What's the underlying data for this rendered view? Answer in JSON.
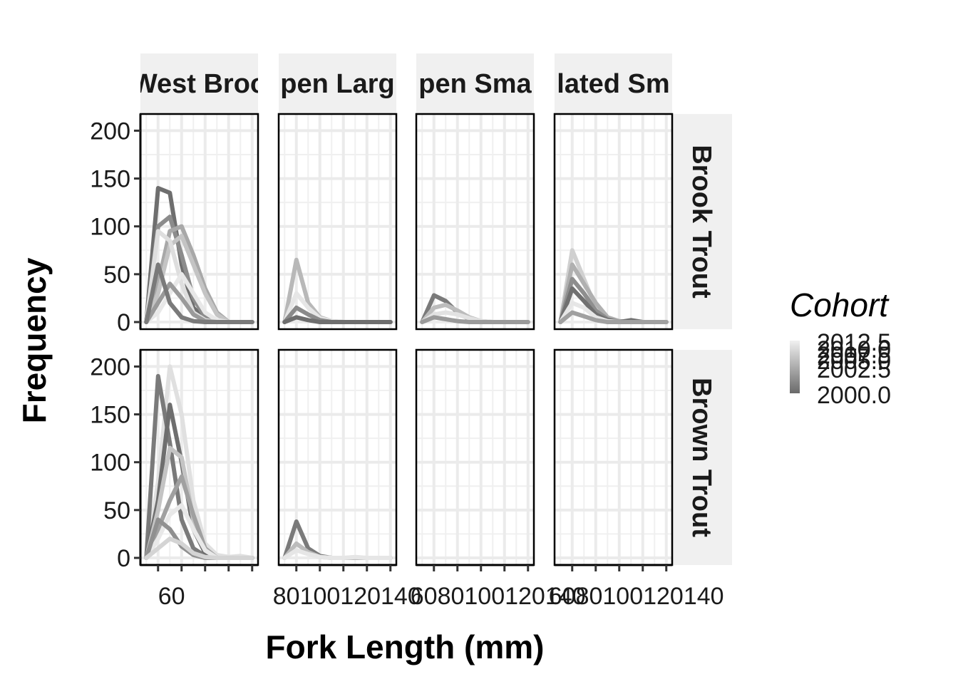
{
  "chart_data": {
    "type": "line",
    "xlabel": "Fork Length (mm)",
    "ylabel": "Frequency",
    "ylim": [
      0,
      210
    ],
    "yticks": [
      0,
      50,
      100,
      150,
      200
    ],
    "xticks": [
      "60",
      "80",
      "100",
      "120",
      "140"
    ],
    "x_tick_labels_display": [
      "60",
      "80100120140",
      "6080100120140",
      "6080100120140",
      "6080100120140"
    ],
    "grid": true,
    "legend": {
      "title": "Cohort",
      "position": "right",
      "labels": [
        "2012.5",
        "2010.0",
        "2007.5",
        "2005.0",
        "2002.5",
        "2000.0"
      ]
    },
    "columns": [
      "West Brook",
      "Open Large",
      "Open Small",
      "Isolated Small"
    ],
    "column_labels_display": [
      "West Broo",
      "pen Larg",
      "pen Sma",
      "lated Sm"
    ],
    "rows": [
      "Brook Trout",
      "Brown Trout"
    ],
    "x": [
      50,
      60,
      70,
      80,
      90,
      100,
      110,
      120,
      130,
      140
    ],
    "panels": [
      {
        "row": "Brook Trout",
        "column": "West Brook",
        "series": [
          {
            "color": "#6e6e6e",
            "values": [
              0,
              140,
              135,
              60,
              15,
              3,
              0,
              0,
              0,
              0
            ]
          },
          {
            "color": "#8c8c8c",
            "values": [
              0,
              100,
              110,
              70,
              25,
              5,
              0,
              0,
              0,
              0
            ]
          },
          {
            "color": "#a8a8a8",
            "values": [
              0,
              40,
              95,
              100,
              70,
              35,
              10,
              0,
              0,
              0
            ]
          },
          {
            "color": "#c4c4c4",
            "values": [
              0,
              30,
              80,
              90,
              60,
              30,
              8,
              0,
              0,
              0
            ]
          },
          {
            "color": "#dedede",
            "values": [
              0,
              95,
              85,
              40,
              10,
              2,
              0,
              0,
              0,
              0
            ]
          },
          {
            "color": "#e8e8e8",
            "values": [
              0,
              10,
              30,
              50,
              30,
              10,
              2,
              0,
              0,
              0
            ]
          },
          {
            "color": "#9a9a9a",
            "values": [
              0,
              20,
              40,
              25,
              8,
              1,
              0,
              0,
              0,
              0
            ]
          },
          {
            "color": "#7a7a7a",
            "values": [
              0,
              60,
              20,
              5,
              1,
              0,
              0,
              0,
              0,
              0
            ]
          }
        ]
      },
      {
        "row": "Brook Trout",
        "column": "Open Large",
        "series": [
          {
            "color": "#b8b8b8",
            "values": [
              0,
              65,
              20,
              5,
              1,
              0,
              0,
              0,
              0,
              0
            ]
          },
          {
            "color": "#e6e6e6",
            "values": [
              0,
              30,
              15,
              4,
              1,
              0,
              0,
              0,
              0,
              0
            ]
          },
          {
            "color": "#8a8a8a",
            "values": [
              0,
              15,
              8,
              2,
              0,
              0,
              0,
              0,
              0,
              0
            ]
          },
          {
            "color": "#6e6e6e",
            "values": [
              0,
              5,
              2,
              0,
              0,
              0,
              0,
              0,
              0,
              0
            ]
          }
        ]
      },
      {
        "row": "Brook Trout",
        "column": "Open Small",
        "series": [
          {
            "color": "#7a7a7a",
            "values": [
              0,
              28,
              22,
              10,
              3,
              0,
              0,
              0,
              0,
              0
            ]
          },
          {
            "color": "#bcbcbc",
            "values": [
              0,
              15,
              18,
              12,
              5,
              1,
              0,
              0,
              0,
              0
            ]
          },
          {
            "color": "#e2e2e2",
            "values": [
              0,
              8,
              10,
              8,
              4,
              1,
              0,
              0,
              0,
              0
            ]
          },
          {
            "color": "#9a9a9a",
            "values": [
              0,
              5,
              3,
              1,
              0,
              0,
              0,
              0,
              0,
              0
            ]
          }
        ]
      },
      {
        "row": "Brook Trout",
        "column": "Isolated Small",
        "series": [
          {
            "color": "#d0d0d0",
            "values": [
              0,
              75,
              45,
              15,
              3,
              0,
              0,
              0,
              0,
              0
            ]
          },
          {
            "color": "#b0b0b0",
            "values": [
              0,
              60,
              40,
              20,
              5,
              1,
              0,
              0,
              0,
              0
            ]
          },
          {
            "color": "#8e8e8e",
            "values": [
              0,
              45,
              30,
              12,
              3,
              0,
              0,
              0,
              0,
              0
            ]
          },
          {
            "color": "#707070",
            "values": [
              0,
              35,
              22,
              8,
              2,
              0,
              2,
              0,
              0,
              0
            ]
          },
          {
            "color": "#e6e6e6",
            "values": [
              0,
              20,
              15,
              5,
              1,
              0,
              0,
              0,
              0,
              0
            ]
          },
          {
            "color": "#a0a0a0",
            "values": [
              0,
              10,
              6,
              2,
              0,
              0,
              0,
              0,
              0,
              0
            ]
          }
        ]
      },
      {
        "row": "Brown Trout",
        "column": "West Brook",
        "series": [
          {
            "color": "#e0e0e0",
            "values": [
              0,
              80,
              200,
              150,
              60,
              15,
              3,
              1,
              2,
              0
            ]
          },
          {
            "color": "#7a7a7a",
            "values": [
              0,
              190,
              120,
              40,
              10,
              2,
              0,
              0,
              0,
              0
            ]
          },
          {
            "color": "#6e6e6e",
            "values": [
              0,
              60,
              160,
              100,
              30,
              5,
              0,
              0,
              0,
              0
            ]
          },
          {
            "color": "#c4c4c4",
            "values": [
              0,
              50,
              115,
              105,
              40,
              8,
              0,
              0,
              0,
              0
            ]
          },
          {
            "color": "#a0a0a0",
            "values": [
              0,
              30,
              60,
              85,
              45,
              10,
              0,
              0,
              0,
              0
            ]
          },
          {
            "color": "#e8e8e8",
            "values": [
              0,
              20,
              45,
              55,
              30,
              8,
              0,
              0,
              0,
              0
            ]
          },
          {
            "color": "#909090",
            "values": [
              0,
              40,
              30,
              12,
              3,
              0,
              0,
              0,
              0,
              0
            ]
          },
          {
            "color": "#d4d4d4",
            "values": [
              0,
              10,
              20,
              15,
              5,
              1,
              0,
              0,
              0,
              0
            ]
          }
        ]
      },
      {
        "row": "Brown Trout",
        "column": "Open Large",
        "series": [
          {
            "color": "#7a7a7a",
            "values": [
              0,
              38,
              10,
              2,
              0,
              0,
              0,
              0,
              0,
              0
            ]
          },
          {
            "color": "#bcbcbc",
            "values": [
              0,
              15,
              6,
              1,
              0,
              0,
              0,
              0,
              0,
              0
            ]
          },
          {
            "color": "#e6e6e6",
            "values": [
              0,
              8,
              4,
              1,
              0,
              0,
              1,
              0,
              0,
              0
            ]
          }
        ]
      },
      {
        "row": "Brown Trout",
        "column": "Open Small",
        "series": []
      },
      {
        "row": "Brown Trout",
        "column": "Isolated Small",
        "series": []
      }
    ]
  }
}
